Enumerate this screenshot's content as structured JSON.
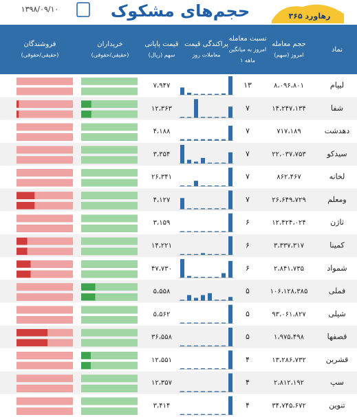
{
  "header": {
    "title": "حجم‌های مشکوک",
    "date": "۱۳۹۸/۰۹/۱۰",
    "logo": "رهاورد ۳۶۵"
  },
  "table": {
    "columns": [
      [
        "نماد"
      ],
      [
        "حجم معامله",
        "امروز (سهم)"
      ],
      [
        "نسبت معامله",
        "امروز به میانگین",
        "۱ ماهه"
      ],
      [
        "پراکندگی قیمت",
        "معاملات روز"
      ],
      [
        "قیمت پایانی",
        "سهم (ریال)"
      ],
      [
        "خریداران",
        "(حقیقی/حقوقی)"
      ],
      [
        "فروشندگان",
        "(حقیقی/حقوقی)"
      ]
    ],
    "rows": [
      {
        "symbol": "لیپام",
        "volume": "۸،۰۹۶،۸۰۱",
        "ratio": "۱۳",
        "price": "۷،۹۴۷",
        "dist": [
          40,
          12,
          6,
          6,
          6,
          6,
          8,
          100
        ],
        "buyers": 100,
        "sellers": 100
      },
      {
        "symbol": "شفا",
        "volume": "۱۴،۲۴۷،۱۳۴",
        "ratio": "۷",
        "price": "۱۲،۳۶۳",
        "dist": [
          5,
          5,
          100,
          5,
          5,
          5,
          5,
          60
        ],
        "buyers": 82,
        "sellers": 96
      },
      {
        "symbol": "دهدشت",
        "volume": "۷۱۷،۱۸۹",
        "ratio": "۷",
        "price": "۴،۱۸۸",
        "dist": [
          8,
          8,
          8,
          8,
          8,
          8,
          8,
          80
        ],
        "buyers": 100,
        "sellers": 100
      },
      {
        "symbol": "سیدکو",
        "volume": "۲۲،۰۳۷،۷۵۳",
        "ratio": "۷",
        "price": "۳،۳۵۴",
        "dist": [
          100,
          20,
          10,
          30,
          5,
          5,
          5,
          60
        ],
        "buyers": 100,
        "sellers": 100
      },
      {
        "symbol": "لخانه",
        "volume": "۸۶۲،۴۶۷",
        "ratio": "۷",
        "price": "۲۶،۳۴۱",
        "dist": [
          5,
          5,
          30,
          5,
          5,
          5,
          5,
          100
        ],
        "buyers": 100,
        "sellers": 100
      },
      {
        "symbol": "ومعلم",
        "volume": "۲۶،۶۴۹،۷۲۹",
        "ratio": "۷",
        "price": "۴،۱۲۷",
        "dist": [
          60,
          5,
          5,
          5,
          5,
          5,
          5,
          100
        ],
        "buyers": 100,
        "sellers": 68
      },
      {
        "symbol": "ثاژن",
        "volume": "۱۲،۴۲۴،۰۲۴",
        "ratio": "۶",
        "price": "۳،۱۵۹",
        "dist": [
          5,
          5,
          5,
          5,
          5,
          5,
          5,
          100
        ],
        "buyers": 100,
        "sellers": 100
      },
      {
        "symbol": "کمینا",
        "volume": "۳،۳۳۷،۳۱۷",
        "ratio": "۶",
        "price": "۱۴،۲۲۱",
        "dist": [
          5,
          5,
          5,
          10,
          5,
          5,
          5,
          100
        ],
        "buyers": 100,
        "sellers": 81
      },
      {
        "symbol": "شمواد",
        "volume": "۲،۸۴۱،۷۳۵",
        "ratio": "۶",
        "price": "۴۷،۷۳۰",
        "dist": [
          100,
          10,
          5,
          5,
          5,
          5,
          25,
          90
        ],
        "buyers": 100,
        "sellers": 75
      },
      {
        "symbol": "فملی",
        "volume": "۱۰۶،۱۲۸،۳۸۵",
        "ratio": "۵",
        "price": "۵،۵۵۸",
        "dist": [
          5,
          30,
          15,
          30,
          40,
          5,
          5,
          20
        ],
        "buyers": 75,
        "sellers": 100
      },
      {
        "symbol": "شپلی",
        "volume": "۹۳،۰۶۱،۸۲۷",
        "ratio": "۵",
        "price": "۵،۵۶۲",
        "dist": [
          5,
          5,
          5,
          5,
          5,
          5,
          5,
          100
        ],
        "buyers": 100,
        "sellers": 100
      },
      {
        "symbol": "قصفها",
        "volume": "۱،۹۷۵،۴۹۸",
        "ratio": "۵",
        "price": "۳۶،۵۵۸",
        "dist": [
          5,
          5,
          5,
          5,
          5,
          5,
          5,
          100
        ],
        "buyers": 100,
        "sellers": 45
      },
      {
        "symbol": "قشرین",
        "volume": "۱۳،۲۸۶،۷۳۲",
        "ratio": "۴",
        "price": "۱۲،۵۵۱",
        "dist": [
          5,
          5,
          5,
          5,
          5,
          5,
          5,
          100
        ],
        "buyers": 83,
        "sellers": 100
      },
      {
        "symbol": "سپ",
        "volume": "۲،۸۱۲،۱۹۲",
        "ratio": "۴",
        "price": "۱۲،۳۵۷",
        "dist": [
          5,
          5,
          5,
          5,
          5,
          5,
          5,
          100
        ],
        "buyers": 100,
        "sellers": 100
      },
      {
        "symbol": "تنوین",
        "volume": "۳۴،۷۴۵،۶۷۲",
        "ratio": "۴",
        "price": "۳،۴۱۴",
        "dist": [
          5,
          5,
          5,
          5,
          5,
          5,
          5,
          100
        ],
        "buyers": 100,
        "sellers": 100
      }
    ]
  }
}
